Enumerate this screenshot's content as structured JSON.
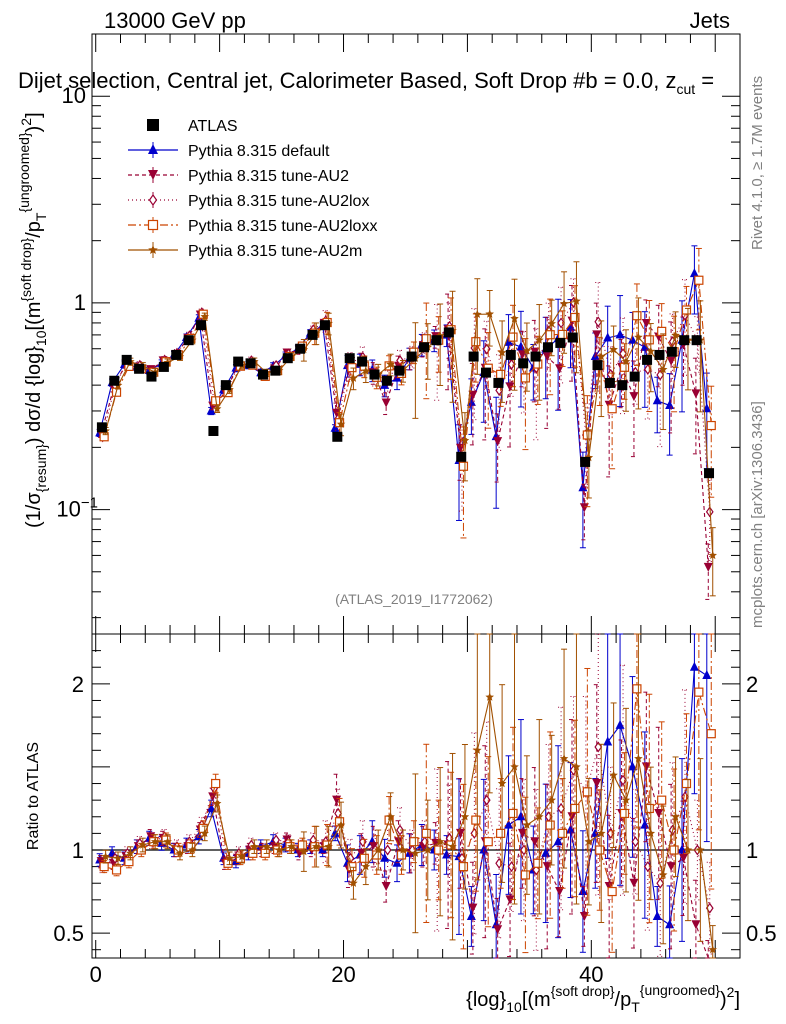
{
  "header": {
    "left": "13000 GeV pp",
    "right": "Jets",
    "plot_title": "Dijet selection, Central jet, Calorimeter Based, Soft Drop #b = 0.0, z_cut =",
    "plot_title_main": "Dijet selection, Central jet, Calorimeter Based, Soft Drop #b",
    "plot_title_eq": " = 0.0, z",
    "plot_title_cut": "cut",
    "plot_title_end": " ="
  },
  "side": {
    "rivet": "Rivet 4.1.0, ≥ 1.7M events",
    "mcplots": "mcplots.cern.ch [arXiv:1306.3436]"
  },
  "watermark": "(ATLAS_2019_I1772062)",
  "axes": {
    "ylabel_main": "(1/σ{resum}) dσ/d {log}10[(m{soft drop}/pT{ungroomed})2]",
    "ylabel_parts": {
      "a": "(1/σ",
      "b": "{resum}",
      "c": ") dσ/d {log}",
      "d": "10",
      "e": "[(m",
      "f": "{soft drop}",
      "g": "/p",
      "h": "T",
      "i": "{ungroomed}",
      "j": ")",
      "k": "2",
      "l": "]"
    },
    "ylabel_ratio": "Ratio to ATLAS",
    "xlabel_parts": {
      "a": "{log}",
      "b": "10",
      "c": "[(m",
      "d": "{soft drop}",
      "e": "/p",
      "f": "T",
      "g": "{ungroomed}",
      "h": ")",
      "i": "2",
      "j": "]"
    },
    "main_ticks": [
      {
        "value": 10,
        "label": "10"
      },
      {
        "value": 1,
        "label": "1"
      },
      {
        "value": 0.1,
        "label": "10",
        "sup": "−1"
      }
    ],
    "ratio_ticks": [
      {
        "value": 2,
        "label": "2"
      },
      {
        "value": 1,
        "label": "1"
      },
      {
        "value": 0.5,
        "label": "0.5"
      }
    ],
    "x_ticks": [
      {
        "value": 0,
        "label": "0"
      },
      {
        "value": 20,
        "label": "20"
      },
      {
        "value": 40,
        "label": "40"
      }
    ]
  },
  "chart_data": {
    "type": "scatter",
    "title": "Dijet selection, Central jet, Calorimeter Based, Soft Drop #b = 0.0, z_cut =",
    "xlabel": "{log}10[(m{soft drop}/pT{ungroomed})2]",
    "ylabel": "(1/σ{resum}) dσ/d {log}10[(m{soft drop}/pT{ungroomed})2]",
    "xlim": [
      -0.3,
      52.0
    ],
    "ylim_main": [
      0.025,
      20
    ],
    "ylim_ratio": [
      0.35,
      2.3
    ],
    "yscale_main": "log",
    "x": [
      0.5,
      1.5,
      2.5,
      3.5,
      4.5,
      5.5,
      6.5,
      7.5,
      8.5,
      9.5,
      10.5,
      11.5,
      12.5,
      13.5,
      14.5,
      15.5,
      16.5,
      17.5,
      18.5,
      19.5,
      20.5,
      21.5,
      22.5,
      23.5,
      24.5,
      25.5,
      26.5,
      27.5,
      28.5,
      29.5,
      30.5,
      31.5,
      32.5,
      33.5,
      34.5,
      35.5,
      36.5,
      37.5,
      38.5,
      39.5,
      40.5,
      41.5,
      42.5,
      43.5,
      44.5,
      45.5,
      46.5,
      47.5,
      48.5,
      49.5
    ],
    "atlas": [
      0.25,
      0.42,
      0.53,
      0.48,
      0.44,
      0.49,
      0.56,
      0.66,
      0.78,
      0.24,
      0.4,
      0.52,
      0.51,
      0.45,
      0.47,
      0.54,
      0.6,
      0.7,
      0.78,
      0.225,
      0.54,
      0.52,
      0.45,
      0.42,
      0.47,
      0.55,
      0.61,
      0.66,
      0.72,
      0.18,
      0.55,
      0.46,
      0.41,
      0.56,
      0.51,
      0.55,
      0.61,
      0.64,
      0.68,
      0.17,
      0.5,
      0.41,
      0.4,
      0.44,
      0.53,
      0.56,
      0.58,
      0.66,
      0.66,
      0.15
    ],
    "series": [
      {
        "name": "ATLAS",
        "color": "#000000",
        "marker": "square"
      },
      {
        "name": "Pythia 8.315 default",
        "color": "#0000cc",
        "marker": "triangle-up",
        "dash": "",
        "ratio": [
          0.94,
          0.98,
          0.95,
          1.02,
          1.07,
          1.04,
          1.0,
          1.03,
          1.08,
          1.25,
          0.95,
          0.93,
          0.98,
          1.02,
          1.05,
          1.03,
          1.0,
          1.02,
          1.0,
          1.1,
          0.92,
          0.97,
          1.05,
          0.95,
          0.92,
          0.98,
          1.03,
          1.0,
          0.97,
          0.96,
          0.6,
          1.0,
          0.55,
          1.15,
          1.2,
          0.88,
          0.98,
          1.05,
          1.12,
          0.75,
          1.1,
          1.65,
          1.75,
          1.5,
          1.15,
          0.6,
          0.55,
          1.0,
          2.1,
          2.05
        ]
      },
      {
        "name": "Pythia 8.315 tune-AU2",
        "color": "#990033",
        "marker": "triangle-down",
        "dash": "4,3",
        "ratio": [
          0.93,
          0.92,
          0.96,
          1.02,
          1.08,
          1.07,
          1.0,
          1.02,
          1.12,
          1.32,
          0.92,
          0.95,
          1.0,
          1.0,
          1.02,
          1.06,
          0.98,
          1.0,
          1.02,
          1.3,
          0.88,
          0.98,
          1.02,
          0.78,
          1.05,
          0.98,
          1.02,
          1.04,
          1.03,
          1.1,
          0.65,
          1.05,
          0.52,
          0.7,
          1.1,
          1.05,
          0.9,
          0.75,
          1.2,
          0.6,
          1.4,
          0.78,
          1.22,
          0.8,
          1.5,
          1.22,
          0.9,
          0.95,
          0.55,
          0.35
        ]
      },
      {
        "name": "Pythia 8.315 tune-AU2lox",
        "color": "#990033",
        "marker": "diamond-open",
        "dash": "1,3",
        "ratio": [
          0.9,
          0.95,
          0.98,
          1.04,
          1.05,
          1.08,
          1.02,
          1.05,
          1.15,
          1.37,
          0.93,
          0.98,
          1.03,
          1.0,
          1.06,
          1.05,
          1.02,
          1.06,
          1.05,
          1.22,
          0.95,
          1.05,
          1.0,
          1.0,
          1.12,
          1.0,
          1.05,
          1.0,
          1.07,
          0.95,
          1.1,
          1.3,
          0.92,
          0.9,
          1.0,
          0.88,
          1.2,
          1.25,
          1.48,
          1.35,
          1.62,
          1.1,
          1.42,
          1.05,
          0.9,
          0.8,
          1.12,
          1.32,
          1.0,
          0.65
        ]
      },
      {
        "name": "Pythia 8.315 tune-AU2loxx",
        "color": "#cc4400",
        "marker": "square-open",
        "dash": "8,3,2,3",
        "ratio": [
          0.9,
          0.88,
          0.93,
          1.0,
          1.05,
          1.06,
          1.0,
          1.02,
          1.13,
          1.4,
          0.92,
          0.95,
          0.98,
          0.98,
          1.0,
          1.02,
          1.03,
          1.02,
          1.03,
          1.17,
          0.9,
          0.95,
          0.97,
          1.18,
          0.97,
          1.05,
          1.1,
          1.0,
          1.03,
          0.9,
          1.18,
          1.05,
          1.1,
          1.22,
          0.85,
          0.92,
          1.15,
          1.1,
          1.25,
          1.35,
          1.0,
          0.75,
          1.22,
          1.97,
          1.25,
          1.3,
          1.0,
          1.4,
          1.95,
          1.7
        ]
      },
      {
        "name": "Pythia 8.315 tune-AU2m",
        "color": "#a15000",
        "marker": "star",
        "dash": "",
        "ratio": [
          0.96,
          0.95,
          0.98,
          1.03,
          1.05,
          1.05,
          0.98,
          1.0,
          1.1,
          1.28,
          0.95,
          0.96,
          1.02,
          1.02,
          1.0,
          1.02,
          0.99,
          1.02,
          1.02,
          1.15,
          0.8,
          0.9,
          1.0,
          1.2,
          1.0,
          0.98,
          1.0,
          1.05,
          1.02,
          1.2,
          1.6,
          1.92,
          1.4,
          1.5,
          1.15,
          1.2,
          1.3,
          1.55,
          1.5,
          1.05,
          1.1,
          1.45,
          1.3,
          1.55,
          1.1,
          0.85,
          1.2,
          1.0,
          1.0,
          0.4
        ]
      }
    ]
  }
}
